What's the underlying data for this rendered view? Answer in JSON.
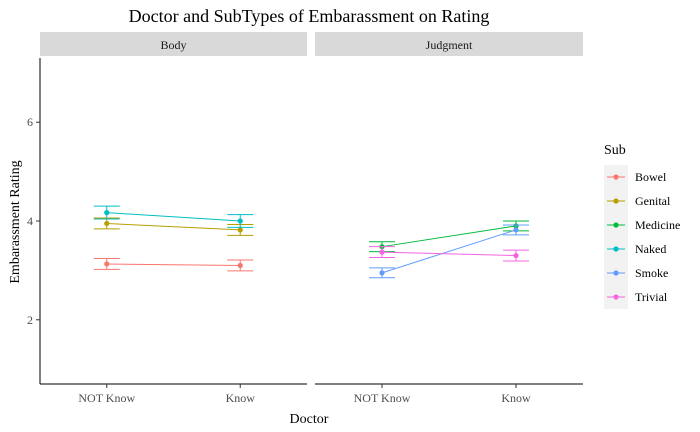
{
  "chart_data": {
    "type": "line",
    "title": "Doctor and SubTypes of Embarassment on Rating",
    "xlabel": "Doctor",
    "ylabel": "Embarassment Rating",
    "categories": [
      "NOT Know",
      "Know"
    ],
    "ylim": [
      0.7,
      7.3
    ],
    "yticks": [
      2,
      4,
      6
    ],
    "grid": false,
    "legend_position": "right",
    "legend_title": "Sub",
    "legend": [
      "Bowel",
      "Genital",
      "Medicine",
      "Naked",
      "Smoke",
      "Trivial"
    ],
    "colors": {
      "Bowel": "#F8766D",
      "Genital": "#B79F00",
      "Medicine": "#00BA38",
      "Naked": "#00BFC4",
      "Smoke": "#619CFF",
      "Trivial": "#F564E3"
    },
    "panels": [
      {
        "name": "Body",
        "series": [
          {
            "name": "Bowel",
            "values": [
              3.13,
              3.1
            ],
            "err": [
              0.11,
              0.11
            ]
          },
          {
            "name": "Genital",
            "values": [
              3.95,
              3.82
            ],
            "err": [
              0.11,
              0.11
            ]
          },
          {
            "name": "Naked",
            "values": [
              4.17,
              4.0
            ],
            "err": [
              0.13,
              0.13
            ]
          }
        ]
      },
      {
        "name": "Judgment",
        "series": [
          {
            "name": "Medicine",
            "values": [
              3.48,
              3.9
            ],
            "err": [
              0.1,
              0.1
            ]
          },
          {
            "name": "Smoke",
            "values": [
              2.95,
              3.82
            ],
            "err": [
              0.1,
              0.1
            ]
          },
          {
            "name": "Trivial",
            "values": [
              3.37,
              3.3
            ],
            "err": [
              0.11,
              0.11
            ]
          }
        ]
      }
    ]
  }
}
